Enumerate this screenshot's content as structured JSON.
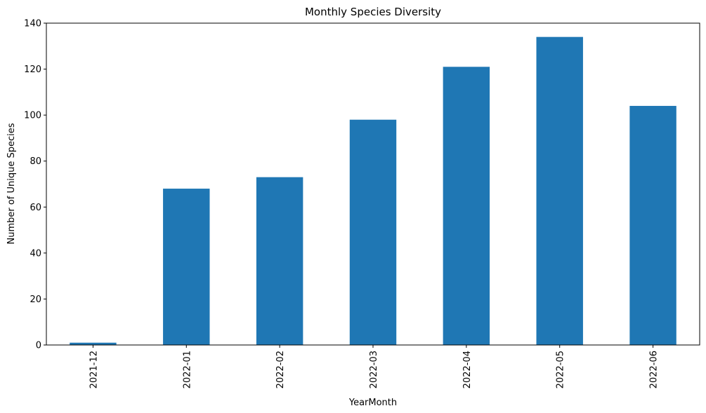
{
  "chart_data": {
    "type": "bar",
    "title": "Monthly Species Diversity",
    "xlabel": "YearMonth",
    "ylabel": "Number of Unique Species",
    "categories": [
      "2021-12",
      "2022-01",
      "2022-02",
      "2022-03",
      "2022-04",
      "2022-05",
      "2022-06"
    ],
    "values": [
      1,
      68,
      73,
      98,
      121,
      134,
      104
    ],
    "ylim": [
      0,
      140
    ],
    "yticks": [
      0,
      20,
      40,
      60,
      80,
      100,
      120,
      140
    ],
    "grid": false,
    "legend": "none",
    "bar_color": "#1f77b4"
  }
}
